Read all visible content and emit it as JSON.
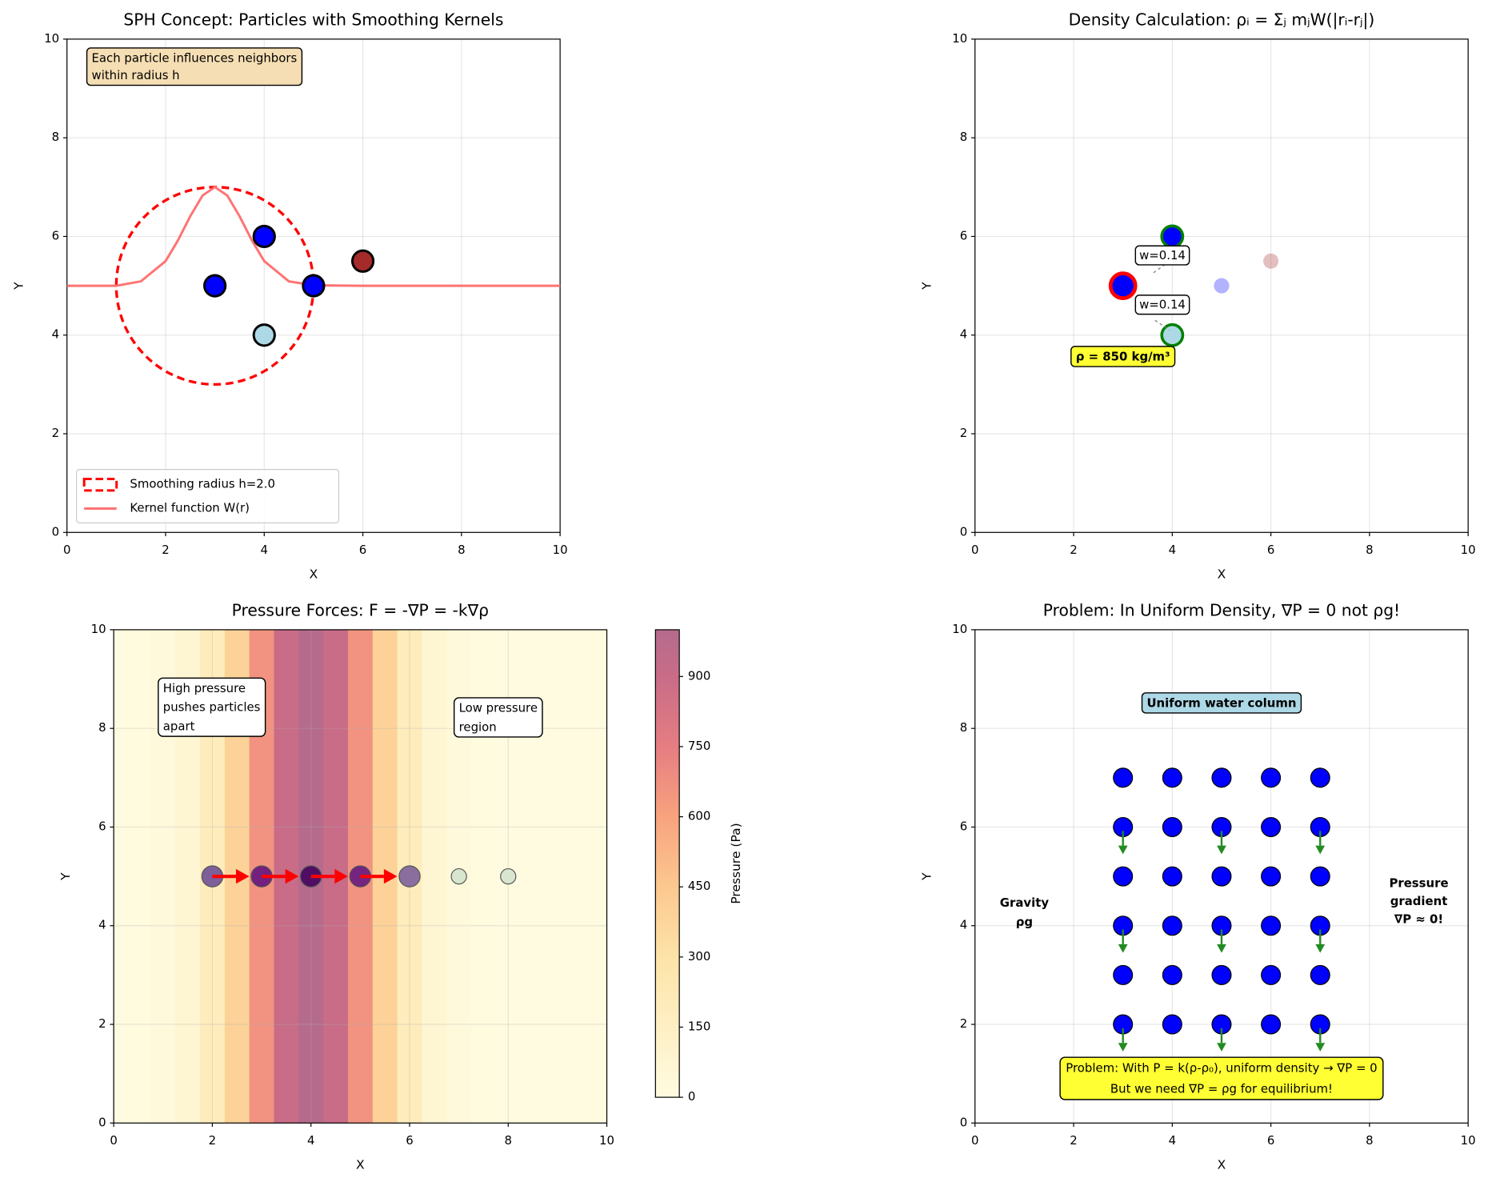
{
  "chart_data": [
    {
      "type": "scatter",
      "title": "SPH Concept: Particles with Smoothing Kernels",
      "xlabel": "X",
      "ylabel": "Y",
      "xlim": [
        0,
        10
      ],
      "ylim": [
        0,
        10
      ],
      "xticks": [
        0,
        2,
        4,
        6,
        8,
        10
      ],
      "yticks": [
        0,
        2,
        4,
        6,
        8,
        10
      ],
      "grid": true,
      "legend": "lower left",
      "series": [
        {
          "x": [
            3,
            4,
            5
          ],
          "values": [
            5,
            6,
            5
          ],
          "color": "blue",
          "edgecolor": "black"
        },
        {
          "x": [
            4
          ],
          "values": [
            4
          ],
          "color": "lightblue",
          "edgecolor": "black"
        },
        {
          "x": [
            6
          ],
          "values": [
            5.5
          ],
          "color": "brown",
          "edgecolor": "black"
        }
      ],
      "circles": [
        {
          "name": "Smoothing radius h=2.0",
          "x": 3,
          "y": 5,
          "r": 2,
          "color": "red"
        }
      ],
      "lines": [
        {
          "name": "Kernel function W(r)",
          "color": "#ff7373",
          "x": [
            0,
            1,
            1.5,
            2,
            2.25,
            2.5,
            2.75,
            3,
            3.25,
            3.5,
            3.75,
            4,
            4.5,
            5,
            6,
            10
          ],
          "values": [
            5,
            5,
            5.09,
            5.5,
            5.92,
            6.41,
            6.83,
            7,
            6.83,
            6.41,
            5.92,
            5.5,
            5.09,
            5.01,
            5,
            5
          ]
        }
      ],
      "annotations": [
        [
          "Each particle influences neighbors",
          "within radius h"
        ]
      ]
    },
    {
      "type": "scatter",
      "title": "Density Calculation: ρᵢ = Σⱼ mⱼW(|rᵢ-rⱼ|)",
      "xlabel": "X",
      "ylabel": "Y",
      "xlim": [
        0,
        10
      ],
      "ylim": [
        0,
        10
      ],
      "xticks": [
        0,
        2,
        4,
        6,
        8,
        10
      ],
      "yticks": [
        0,
        2,
        4,
        6,
        8,
        10
      ],
      "grid": true,
      "series": [
        {
          "x": [
            3
          ],
          "values": [
            5
          ],
          "color": "blue",
          "edgecolor": "red"
        },
        {
          "x": [
            4
          ],
          "values": [
            6
          ],
          "color": "blue",
          "edgecolor": "green"
        },
        {
          "x": [
            4
          ],
          "values": [
            4
          ],
          "color": "lightblue",
          "edgecolor": "green"
        },
        {
          "x": [
            5
          ],
          "values": [
            5
          ],
          "color": "blue",
          "alpha": 0.3
        },
        {
          "x": [
            6
          ],
          "values": [
            5.5
          ],
          "color": "brown",
          "alpha": 0.3
        }
      ],
      "annotations": [
        [
          "w=0.14"
        ],
        [
          "w=0.14"
        ],
        [
          "ρ = 850 kg/m³"
        ]
      ]
    },
    {
      "type": "heatmap",
      "title": "Pressure Forces: F = -∇P = -k∇ρ",
      "xlabel": "X",
      "ylabel": "Y",
      "xlim": [
        0,
        10
      ],
      "ylim": [
        0,
        10
      ],
      "xticks": [
        0,
        2,
        4,
        6,
        8,
        10
      ],
      "yticks": [
        0,
        2,
        4,
        6,
        8,
        10
      ],
      "grid": true,
      "x": [
        0,
        0.5,
        1,
        1.5,
        2,
        2.5,
        3,
        3.5,
        4,
        4.5,
        5,
        5.5,
        6,
        6.5,
        7,
        7.5,
        8,
        8.5,
        9,
        9.5,
        10
      ],
      "values": [
        1,
        6,
        24,
        76,
        191,
        395,
        662,
        902,
        1000,
        902,
        662,
        395,
        191,
        76,
        24,
        6,
        1,
        0,
        0,
        0,
        0
      ],
      "colorbar": {
        "label": "Pressure (Pa)",
        "ylim": [
          0,
          1000
        ],
        "yticks": [
          0,
          150,
          300,
          450,
          600,
          750,
          900
        ]
      },
      "series": [
        {
          "x": [
            2,
            3,
            4,
            5,
            6,
            7,
            8
          ],
          "values": [
            5,
            5,
            5,
            5,
            5,
            5,
            5
          ],
          "colors": [
            "#7d5f99",
            "#73207f",
            "#4f0e63",
            "#742580",
            "#8a6e9e",
            "#d8e6cf",
            "#d8e6cf"
          ],
          "edgecolor": "#555555"
        }
      ],
      "annotations": [
        [
          "High pressure",
          "pushes particles",
          "apart"
        ],
        [
          "Low pressure",
          "region"
        ]
      ]
    },
    {
      "type": "scatter",
      "title": "Problem: In Uniform Density, ∇P = 0 not ρg!",
      "xlabel": "X",
      "ylabel": "Y",
      "xlim": [
        0,
        10
      ],
      "ylim": [
        0,
        10
      ],
      "xticks": [
        0,
        2,
        4,
        6,
        8,
        10
      ],
      "yticks": [
        0,
        2,
        4,
        6,
        8,
        10
      ],
      "grid": true,
      "series": [
        {
          "color": "blue",
          "edgecolor": "black",
          "x": [
            3,
            4,
            5,
            6,
            7,
            3,
            4,
            5,
            6,
            7,
            3,
            4,
            5,
            6,
            7,
            3,
            4,
            5,
            6,
            7,
            3,
            4,
            5,
            6,
            7,
            3,
            4,
            5,
            6,
            7
          ],
          "values": [
            7,
            7,
            7,
            7,
            7,
            6,
            6,
            6,
            6,
            6,
            5,
            5,
            5,
            5,
            5,
            4,
            4,
            4,
            4,
            4,
            3,
            3,
            3,
            3,
            3,
            2,
            2,
            2,
            2,
            2
          ]
        }
      ],
      "annotations": [
        [
          "Uniform water column"
        ],
        [
          "Gravity",
          "ρg"
        ],
        [
          "Pressure",
          "gradient",
          "∇P ≈ 0!"
        ],
        [
          "Problem: With P = k(ρ-ρ₀), uniform density → ∇P = 0",
          "But we need ∇P = ρg for equilibrium!"
        ]
      ]
    }
  ]
}
